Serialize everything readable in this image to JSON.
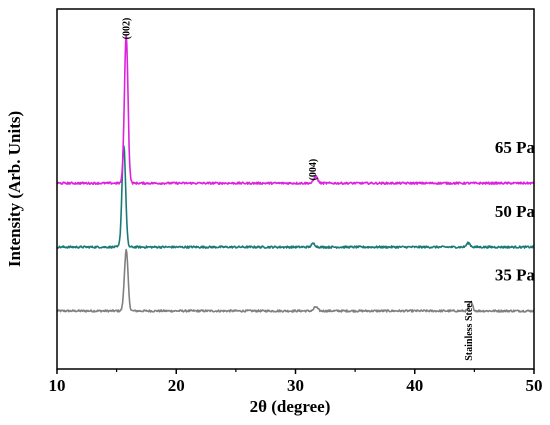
{
  "chart_data": {
    "type": "line",
    "title": "",
    "xlabel": "2θ (degree)",
    "ylabel": "Intensity (Arb. Units)",
    "xlim": [
      10,
      50
    ],
    "xticks": [
      10,
      20,
      30,
      40,
      50
    ],
    "y_ticks_shown": false,
    "grid": false,
    "legend": "none",
    "series": [
      {
        "name": "35 Pa",
        "color": "#808080",
        "baseline": 1.0,
        "peaks": [
          {
            "x": 15.8,
            "height": 1.05
          },
          {
            "x": 31.7,
            "height": 0.07
          },
          {
            "x": 44.7,
            "height": 0.15
          }
        ]
      },
      {
        "name": "50 Pa",
        "color": "#1a7a78",
        "baseline": 2.1,
        "peaks": [
          {
            "x": 15.6,
            "height": 1.75
          },
          {
            "x": 31.5,
            "height": 0.06
          },
          {
            "x": 44.5,
            "height": 0.07
          }
        ]
      },
      {
        "name": "65 Pa",
        "color": "#dd22dd",
        "baseline": 3.2,
        "peaks": [
          {
            "x": 15.8,
            "height": 2.55
          },
          {
            "x": 31.7,
            "height": 0.12
          }
        ]
      }
    ],
    "ylim": [
      0.0,
      6.2
    ],
    "annotations": [
      {
        "text": "(002)",
        "x": 16.1,
        "y": 6.05,
        "rotate": -90
      },
      {
        "text": "(004)",
        "x": 31.7,
        "y": 3.62,
        "rotate": -90
      },
      {
        "text": "Stainless Steel",
        "x": 44.8,
        "y": 1.18,
        "rotate": -90
      }
    ]
  }
}
